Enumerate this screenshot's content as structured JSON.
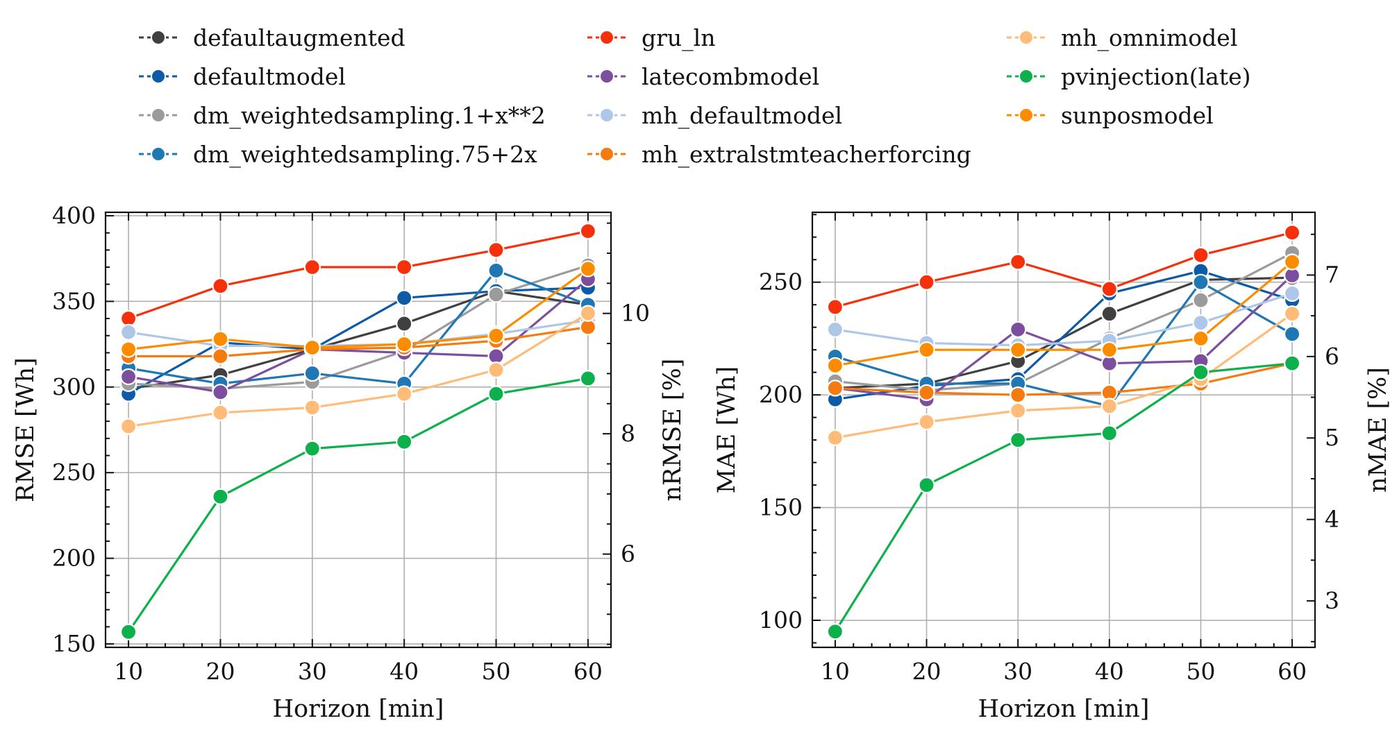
{
  "legend": [
    {
      "name": "defaultaugmented",
      "color": "#404040"
    },
    {
      "name": "defaultmodel",
      "color": "#0d5aa7"
    },
    {
      "name": "dm_weightedsampling.1+x**2",
      "color": "#9b9b9b"
    },
    {
      "name": "dm_weightedsampling.75+2x",
      "color": "#1f77b4"
    },
    {
      "name": "gru_ln",
      "color": "#f5300b"
    },
    {
      "name": "latecombmodel",
      "color": "#7b4f9d"
    },
    {
      "name": "mh_defaultmodel",
      "color": "#aec7e8"
    },
    {
      "name": "mh_extralstmteacherforcing",
      "color": "#f57a10"
    },
    {
      "name": "mh_omnimodel",
      "color": "#ffbb78"
    },
    {
      "name": "pvinjection(late)",
      "color": "#0db14b"
    },
    {
      "name": "sunposmodel",
      "color": "#fb8c00"
    }
  ],
  "legend_display": [
    "defaultaugmented",
    "defaultmodel",
    "dm_weightedsampling.1+x**2",
    "dm_weightedsampling.75+2x",
    "gru_ln",
    "latecombmodel",
    "mh_defaultmodel",
    "mh_extralstmteacherforcing",
    "mh_omnimodel",
    "pvinjection(late)",
    "sunposmodel"
  ],
  "chart_data": [
    {
      "type": "line",
      "xlabel": "Horizon [min]",
      "ylabel": "RMSE [Wh]",
      "ylabel_right": "nRMSE [%]",
      "x": [
        10,
        20,
        30,
        40,
        50,
        60
      ],
      "ylim": [
        148,
        402
      ],
      "yticks": [
        150,
        200,
        250,
        300,
        350,
        400
      ],
      "ylim_right": [
        4.45,
        11.68
      ],
      "yticks_right": [
        6,
        8,
        10
      ],
      "series": [
        {
          "name": "defaultaugmented",
          "values": [
            299,
            307,
            322,
            337,
            356,
            348
          ]
        },
        {
          "name": "defaultmodel",
          "values": [
            296,
            326,
            322,
            352,
            356,
            358
          ]
        },
        {
          "name": "dm_weightedsampling.1+x**2",
          "values": [
            302,
            299,
            303,
            321,
            354,
            371
          ]
        },
        {
          "name": "dm_weightedsampling.75+2x",
          "values": [
            311,
            302,
            308,
            302,
            368,
            348
          ]
        },
        {
          "name": "gru_ln",
          "values": [
            340,
            359,
            370,
            370,
            380,
            391
          ]
        },
        {
          "name": "latecombmodel",
          "values": [
            306,
            297,
            322,
            320,
            318,
            363
          ]
        },
        {
          "name": "mh_defaultmodel",
          "values": [
            332,
            324,
            324,
            325,
            331,
            339
          ]
        },
        {
          "name": "mh_extralstmteacherforcing",
          "values": [
            318,
            318,
            322,
            323,
            327,
            335
          ]
        },
        {
          "name": "mh_omnimodel",
          "values": [
            277,
            285,
            288,
            296,
            310,
            343
          ]
        },
        {
          "name": "pvinjection(late)",
          "values": [
            157,
            236,
            264,
            268,
            296,
            305
          ]
        },
        {
          "name": "sunposmodel",
          "values": [
            322,
            328,
            323,
            325,
            330,
            369
          ]
        }
      ]
    },
    {
      "type": "line",
      "xlabel": "Horizon [min]",
      "ylabel": "MAE [Wh]",
      "ylabel_right": "nMAE [%]",
      "x": [
        10,
        20,
        30,
        40,
        50,
        60
      ],
      "ylim": [
        88,
        281
      ],
      "yticks": [
        100,
        150,
        200,
        250
      ],
      "ylim_right": [
        2.43,
        7.77
      ],
      "yticks_right": [
        3,
        4,
        5,
        6,
        7
      ],
      "series": [
        {
          "name": "defaultaugmented",
          "values": [
            203,
            205,
            215,
            236,
            251,
            252
          ]
        },
        {
          "name": "defaultmodel",
          "values": [
            198,
            204,
            207,
            245,
            255,
            242
          ]
        },
        {
          "name": "dm_weightedsampling.1+x**2",
          "values": [
            206,
            202,
            205,
            225,
            242,
            263
          ]
        },
        {
          "name": "dm_weightedsampling.75+2x",
          "values": [
            217,
            205,
            205,
            195,
            250,
            227
          ]
        },
        {
          "name": "gru_ln",
          "values": [
            239,
            250,
            259,
            247,
            262,
            272
          ]
        },
        {
          "name": "latecombmodel",
          "values": [
            203,
            198,
            229,
            214,
            215,
            253
          ]
        },
        {
          "name": "mh_defaultmodel",
          "values": [
            229,
            223,
            222,
            224,
            232,
            245
          ]
        },
        {
          "name": "mh_extralstmteacherforcing",
          "values": [
            203,
            201,
            200,
            201,
            205,
            214
          ]
        },
        {
          "name": "mh_omnimodel",
          "values": [
            181,
            188,
            193,
            195,
            207,
            236
          ]
        },
        {
          "name": "pvinjection(late)",
          "values": [
            95,
            160,
            180,
            183,
            210,
            214
          ]
        },
        {
          "name": "sunposmodel",
          "values": [
            213,
            220,
            220,
            220,
            225,
            259
          ]
        }
      ]
    }
  ]
}
